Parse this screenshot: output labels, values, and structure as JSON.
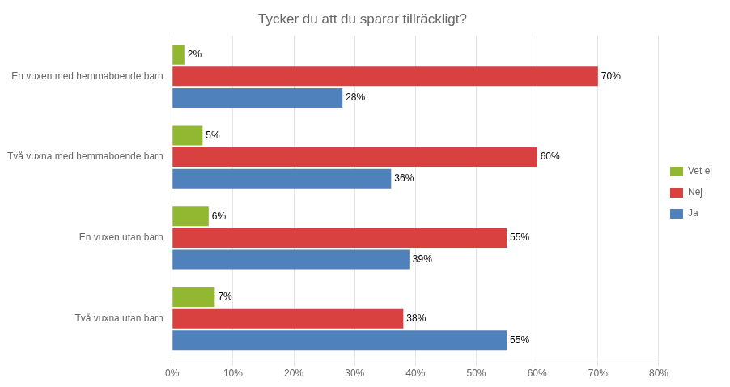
{
  "chart_data": {
    "type": "bar",
    "orientation": "horizontal",
    "title": "Tycker du att du sparar tillräckligt?",
    "categories": [
      "En vuxen med hemmaboende barn",
      "Två vuxna med hemmaboende barn",
      "En vuxen utan barn",
      "Två vuxna utan barn"
    ],
    "series": [
      {
        "name": "Vet ej",
        "color": "#92b832",
        "values": [
          2,
          5,
          6,
          7
        ],
        "value_labels": [
          "2%",
          "5%",
          "6%",
          "7%"
        ]
      },
      {
        "name": "Nej",
        "color": "#d94040",
        "values": [
          70,
          60,
          55,
          38
        ],
        "value_labels": [
          "70%",
          "60%",
          "55%",
          "38%"
        ]
      },
      {
        "name": "Ja",
        "color": "#4f81bd",
        "values": [
          28,
          36,
          39,
          55
        ],
        "value_labels": [
          "28%",
          "36%",
          "39%",
          "55%"
        ]
      }
    ],
    "xlim": [
      0,
      80
    ],
    "xticks": [
      {
        "value": 0,
        "label": "0%"
      },
      {
        "value": 10,
        "label": "10%"
      },
      {
        "value": 20,
        "label": "20%"
      },
      {
        "value": 30,
        "label": "30%"
      },
      {
        "value": 40,
        "label": "40%"
      },
      {
        "value": 50,
        "label": "50%"
      },
      {
        "value": 60,
        "label": "60%"
      },
      {
        "value": 70,
        "label": "70%"
      },
      {
        "value": 80,
        "label": "80%"
      }
    ],
    "grid": true,
    "legend": "right",
    "data_labels": true
  }
}
